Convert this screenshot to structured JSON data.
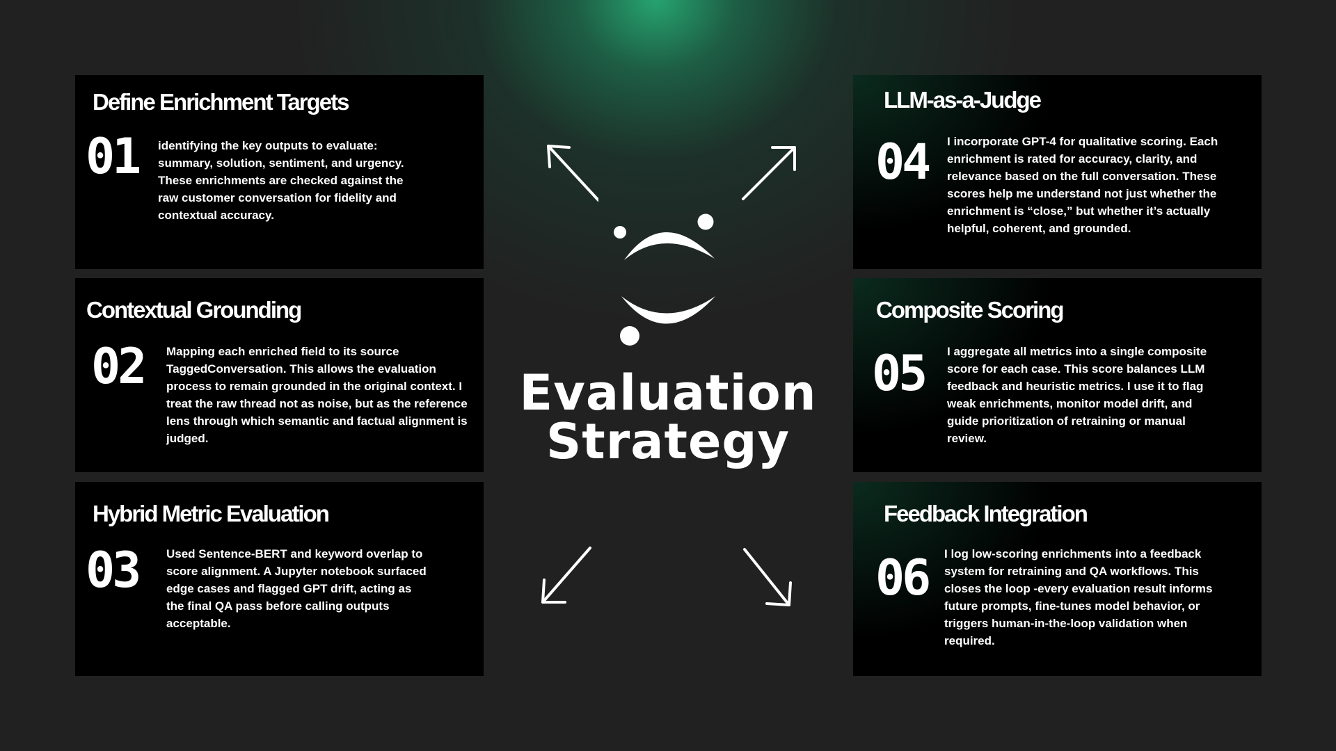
{
  "center": {
    "title_line1": "Evaluation",
    "title_line2": "Strategy"
  },
  "cards": [
    {
      "title": "Define Enrichment Targets",
      "number": "01",
      "text": "identifying the key outputs to evaluate: summary, solution, sentiment, and urgency. These enrichments are checked against the raw customer conversation for fidelity and contextual accuracy."
    },
    {
      "title": "Contextual Grounding",
      "number": "02",
      "text": "Mapping each enriched field to its source TaggedConversation. This allows the evaluation process to remain grounded in the original context. I treat the raw thread not as noise, but as the reference lens through which semantic and factual alignment is judged."
    },
    {
      "title": "Hybrid Metric Evaluation",
      "number": "03",
      "text": "Used Sentence-BERT and keyword overlap to score alignment. A Jupyter notebook surfaced edge cases and flagged GPT drift, acting as the final QA pass before calling outputs acceptable."
    },
    {
      "title": "LLM-as-a-Judge",
      "number": "04",
      "text": "I incorporate GPT-4 for qualitative scoring. Each enrichment is rated for accuracy, clarity, and relevance based on the full conversation. These scores help me understand not just whether the enrichment is “close,” but whether it’s actually helpful, coherent, and grounded."
    },
    {
      "title": "Composite Scoring",
      "number": "05",
      "text": "I aggregate all metrics into a single composite score for each case. This score balances LLM feedback and heuristic metrics. I use it to flag weak enrichments, monitor model drift, and guide prioritization of retraining or manual review."
    },
    {
      "title": "Feedback Integration",
      "number": "06",
      "text": "I log low-scoring enrichments into a feedback system for retraining and QA workflows. This closes the loop -every evaluation result informs future prompts, fine-tunes model behavior, or triggers human-in-the-loop validation when required."
    }
  ],
  "colors": {
    "background": "#212121",
    "card": "#000000",
    "accent_glow": "#26aa73",
    "text": "#ffffff"
  },
  "icons": [
    "smile-logo-icon",
    "arrow-up-left-icon",
    "arrow-up-right-icon",
    "arrow-down-left-icon",
    "arrow-down-right-icon"
  ]
}
